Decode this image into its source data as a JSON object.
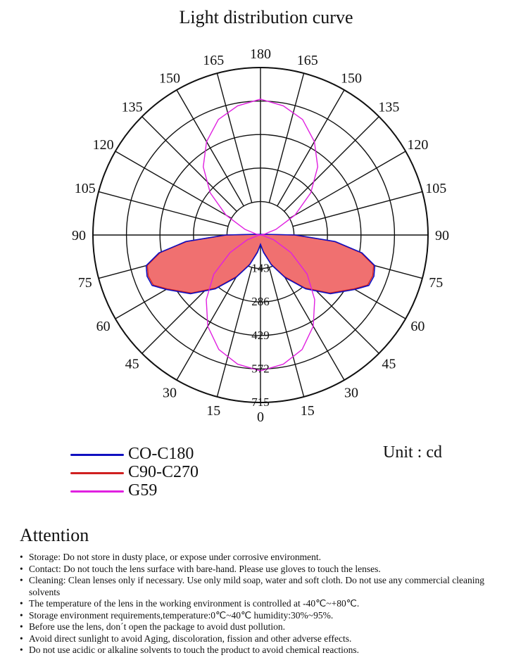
{
  "chart_data": {
    "type": "polar",
    "title": "Light distribution curve",
    "unit_label": "Unit : cd",
    "angle_step": 15,
    "angle_labels": {
      "bottom": "0",
      "top": "180",
      "right": [
        "15",
        "30",
        "45",
        "60",
        "75",
        "90",
        "105",
        "120",
        "135",
        "150",
        "165"
      ],
      "left": [
        "15",
        "30",
        "45",
        "60",
        "75",
        "90",
        "105",
        "120",
        "135",
        "150",
        "165"
      ]
    },
    "rmax": 715,
    "rings": [
      143,
      286,
      429,
      572,
      715
    ],
    "ring_labels": [
      "143",
      "286",
      "429",
      "572",
      "715"
    ],
    "series": [
      {
        "name": "CO-C180",
        "color": "#1010c0",
        "fill": "#f07070",
        "points": [
          [
            0,
            40
          ],
          [
            10,
            75
          ],
          [
            20,
            135
          ],
          [
            30,
            210
          ],
          [
            40,
            300
          ],
          [
            50,
            390
          ],
          [
            60,
            465
          ],
          [
            65,
            510
          ],
          [
            70,
            515
          ],
          [
            75,
            505
          ],
          [
            80,
            440
          ],
          [
            85,
            320
          ],
          [
            90,
            150
          ],
          [
            95,
            30
          ]
        ]
      },
      {
        "name": "C90-C270",
        "color": "#d02020",
        "fill": "#f07070",
        "points": [
          [
            0,
            40
          ],
          [
            10,
            72
          ],
          [
            20,
            132
          ],
          [
            30,
            205
          ],
          [
            40,
            295
          ],
          [
            50,
            385
          ],
          [
            60,
            460
          ],
          [
            65,
            505
          ],
          [
            70,
            510
          ],
          [
            75,
            500
          ],
          [
            80,
            435
          ],
          [
            85,
            315
          ],
          [
            90,
            145
          ],
          [
            95,
            28
          ]
        ]
      },
      {
        "name": "G59",
        "color": "#e020e0",
        "fill": "none",
        "points": [
          [
            0,
            580
          ],
          [
            10,
            560
          ],
          [
            20,
            520
          ],
          [
            30,
            450
          ],
          [
            40,
            360
          ],
          [
            50,
            260
          ],
          [
            60,
            150
          ],
          [
            70,
            60
          ],
          [
            80,
            10
          ],
          [
            90,
            0
          ],
          [
            100,
            15
          ],
          [
            110,
            70
          ],
          [
            120,
            170
          ],
          [
            130,
            280
          ],
          [
            140,
            380
          ],
          [
            150,
            460
          ],
          [
            160,
            525
          ],
          [
            170,
            560
          ],
          [
            180,
            580
          ]
        ]
      }
    ]
  },
  "attention": {
    "title": "Attention",
    "items": [
      "Storage: Do not store in dusty place, or expose under corrosive environment.",
      "Contact: Do not touch the lens surface with bare-hand. Please use gloves to touch the lenses.",
      "Cleaning: Clean lenses only if necessary. Use only mild soap, water and soft cloth. Do not use any commercial cleaning solvents",
      "The temperature of the lens in the working environment is controlled at -40℃~+80℃.",
      "Storage environment requirements,temperature:0℃~40℃ humidity:30%~95%.",
      "Before use the lens, don´t open the package to avoid dust pollution.",
      "Avoid direct sunlight to avoid Aging, discoloration, fission and other adverse effects.",
      "Do not use acidic or alkaline solvents to touch the product to avoid chemical reactions."
    ]
  }
}
